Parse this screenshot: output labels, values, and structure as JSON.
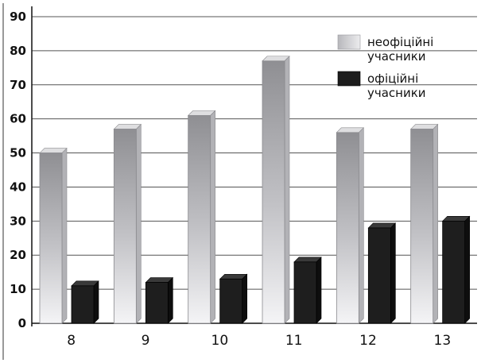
{
  "chart_data": {
    "type": "bar",
    "categories": [
      "8",
      "9",
      "10",
      "11",
      "12",
      "13"
    ],
    "series": [
      {
        "name": "неофіційні учасники",
        "name_lines": [
          "неофіційні",
          "учасники"
        ],
        "values": [
          50,
          57,
          61,
          77,
          56,
          57
        ],
        "color": "#a9a9ad"
      },
      {
        "name": "офіційні учасники",
        "name_lines": [
          "офіційні",
          "учасники"
        ],
        "values": [
          11,
          12,
          13,
          18,
          28,
          30
        ],
        "color": "#1c1c1c"
      }
    ],
    "y_ticks": [
      "0",
      "10",
      "20",
      "30",
      "40",
      "50",
      "60",
      "70",
      "80",
      "90"
    ],
    "ylim": [
      0,
      90
    ],
    "grid": true,
    "legend": "top-right"
  }
}
